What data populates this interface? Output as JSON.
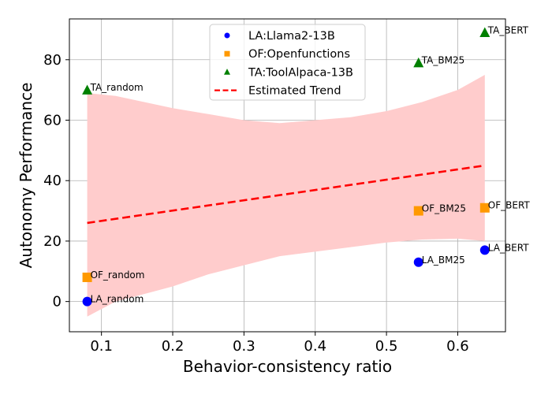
{
  "chart_data": {
    "type": "scatter",
    "title": "",
    "xlabel": "Behavior-consistency ratio",
    "ylabel": "Autonomy Performance",
    "xlim": [
      0.055,
      0.667
    ],
    "ylim": [
      -10,
      93.5
    ],
    "xticks": [
      0.1,
      0.2,
      0.3,
      0.4,
      0.5,
      0.6
    ],
    "xtick_labels": [
      "0.1",
      "0.2",
      "0.3",
      "0.4",
      "0.5",
      "0.6"
    ],
    "yticks": [
      0,
      20,
      40,
      60,
      80
    ],
    "ytick_labels": [
      "0",
      "20",
      "40",
      "60",
      "80"
    ],
    "grid": true,
    "legend_position": "top-center",
    "series": [
      {
        "name": "LA:Llama2-13B",
        "marker": "circle",
        "color": "#0000ff",
        "points": [
          {
            "x": 0.08,
            "y": 0,
            "label": "LA_random"
          },
          {
            "x": 0.545,
            "y": 13,
            "label": "LA_BM25"
          },
          {
            "x": 0.638,
            "y": 17,
            "label": "LA_BERT"
          }
        ]
      },
      {
        "name": "OF:Openfunctions",
        "marker": "square",
        "color": "#ff9900",
        "points": [
          {
            "x": 0.08,
            "y": 8,
            "label": "OF_random"
          },
          {
            "x": 0.545,
            "y": 30,
            "label": "OF_BM25"
          },
          {
            "x": 0.638,
            "y": 31,
            "label": "OF_BERT"
          }
        ]
      },
      {
        "name": "TA:ToolAlpaca-13B",
        "marker": "triangle",
        "color": "#008000",
        "points": [
          {
            "x": 0.08,
            "y": 70,
            "label": "TA_random"
          },
          {
            "x": 0.545,
            "y": 79,
            "label": "TA_BM25"
          },
          {
            "x": 0.638,
            "y": 89,
            "label": "TA_BERT"
          }
        ]
      }
    ],
    "trend": {
      "name": "Estimated Trend",
      "color": "#ff0000",
      "style": "dashed",
      "x": [
        0.08,
        0.638
      ],
      "y": [
        26,
        45
      ]
    },
    "confidence_band": {
      "color": "#ffcccc",
      "x": [
        0.08,
        0.12,
        0.16,
        0.2,
        0.25,
        0.3,
        0.35,
        0.4,
        0.45,
        0.5,
        0.55,
        0.6,
        0.638
      ],
      "upper": [
        69,
        68,
        66,
        64,
        62,
        60,
        59,
        60,
        61,
        63,
        66,
        70,
        75
      ],
      "lower": [
        -5,
        0,
        2.5,
        5,
        9,
        12,
        15,
        16.5,
        18,
        19.5,
        20.5,
        20.8,
        20
      ]
    }
  }
}
